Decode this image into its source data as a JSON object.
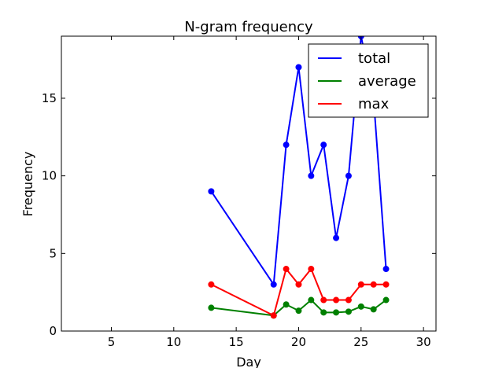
{
  "chart_data": {
    "type": "line",
    "title": "N-gram frequency",
    "xlabel": "Day",
    "ylabel": "Frequency",
    "xlim": [
      1,
      31
    ],
    "ylim": [
      0,
      19
    ],
    "xticks": [
      5,
      10,
      15,
      20,
      25,
      30
    ],
    "yticks": [
      0,
      5,
      10,
      15
    ],
    "x": [
      13,
      18,
      19,
      20,
      21,
      22,
      23,
      24,
      25,
      26,
      27
    ],
    "series": [
      {
        "name": "total",
        "color": "#0000ff",
        "values": [
          9,
          3,
          12,
          17,
          10,
          12,
          6,
          10,
          19,
          15,
          4
        ]
      },
      {
        "name": "average",
        "color": "#008000",
        "values": [
          1.5,
          1,
          1.71,
          1.31,
          2,
          1.2,
          1.2,
          1.25,
          1.58,
          1.4,
          2
        ]
      },
      {
        "name": "max",
        "color": "#ff0000",
        "values": [
          3,
          1,
          4,
          3,
          4,
          2,
          2,
          2,
          3,
          3,
          3
        ]
      }
    ],
    "legend_position": "top-right"
  }
}
